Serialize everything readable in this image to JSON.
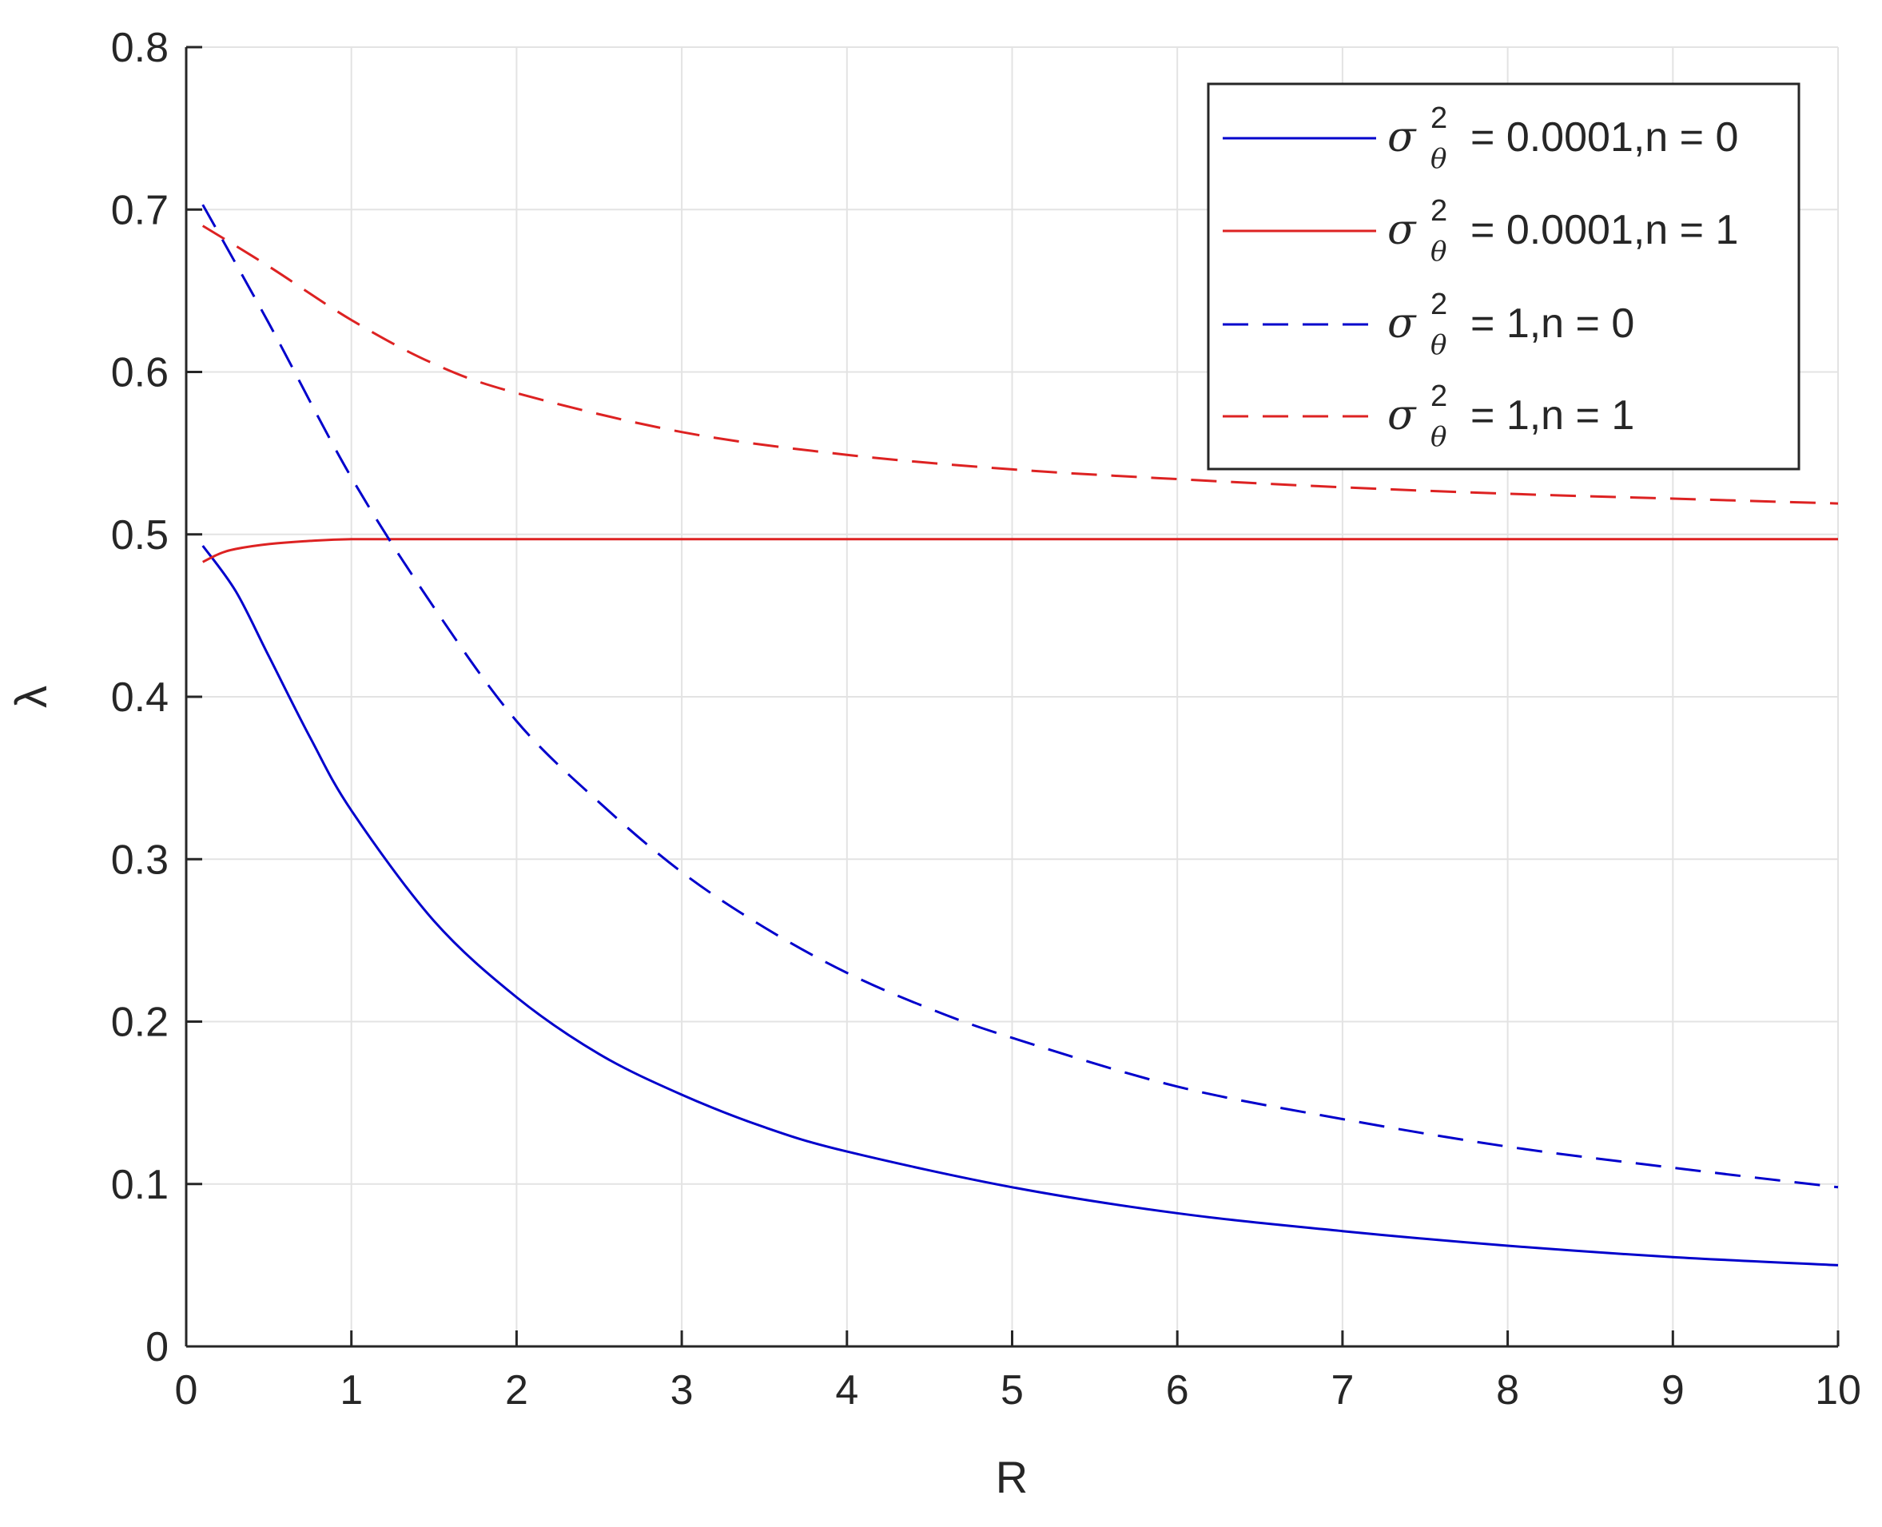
{
  "chart_data": {
    "type": "line",
    "xlabel": "R",
    "ylabel": "λ",
    "xlim": [
      0,
      10
    ],
    "ylim": [
      0,
      0.8
    ],
    "xticks": [
      0,
      1,
      2,
      3,
      4,
      5,
      6,
      7,
      8,
      9,
      10
    ],
    "yticks": [
      0,
      0.1,
      0.2,
      0.3,
      0.4,
      0.5,
      0.6,
      0.7,
      0.8
    ],
    "xtick_labels": [
      "0",
      "1",
      "2",
      "3",
      "4",
      "5",
      "6",
      "7",
      "8",
      "9",
      "10"
    ],
    "ytick_labels": [
      "0",
      "0.1",
      "0.2",
      "0.3",
      "0.4",
      "0.5",
      "0.6",
      "0.7",
      "0.8"
    ],
    "grid": true,
    "legend_position": "top-right",
    "legend_symbol": "σ",
    "legend_superscript": "2",
    "legend_subscript": "θ",
    "series": [
      {
        "name": " = 0.0001,n = 0",
        "color": "#0000cc",
        "style": "solid",
        "x": [
          0.1,
          0.3,
          0.5,
          0.75,
          1,
          1.5,
          2,
          2.5,
          3,
          3.5,
          4,
          5,
          6,
          7,
          8,
          9,
          10
        ],
        "y": [
          0.493,
          0.465,
          0.425,
          0.375,
          0.33,
          0.262,
          0.215,
          0.18,
          0.155,
          0.135,
          0.12,
          0.098,
          0.082,
          0.071,
          0.062,
          0.055,
          0.05
        ]
      },
      {
        "name": " = 0.0001,n = 1",
        "color": "#dd2222",
        "style": "solid",
        "x": [
          0.1,
          0.2,
          0.3,
          0.5,
          0.75,
          1,
          1.5,
          2,
          3,
          5,
          7,
          10
        ],
        "y": [
          0.483,
          0.488,
          0.491,
          0.494,
          0.496,
          0.497,
          0.497,
          0.497,
          0.497,
          0.497,
          0.497,
          0.497
        ]
      },
      {
        "name": " = 1,n = 0",
        "color": "#0000cc",
        "style": "dashed",
        "x": [
          0.1,
          0.5,
          1,
          1.5,
          2,
          2.5,
          3,
          3.5,
          4,
          4.5,
          5,
          6,
          7,
          8,
          9,
          10
        ],
        "y": [
          0.703,
          0.63,
          0.535,
          0.455,
          0.385,
          0.335,
          0.292,
          0.258,
          0.23,
          0.208,
          0.19,
          0.16,
          0.14,
          0.123,
          0.11,
          0.098
        ]
      },
      {
        "name": " = 1,n = 1",
        "color": "#dd2222",
        "style": "dashed",
        "x": [
          0.1,
          0.5,
          1,
          1.5,
          2,
          3,
          4,
          5,
          6,
          7,
          8,
          9,
          10
        ],
        "y": [
          0.69,
          0.665,
          0.632,
          0.605,
          0.587,
          0.563,
          0.549,
          0.54,
          0.534,
          0.529,
          0.525,
          0.522,
          0.519
        ]
      }
    ]
  }
}
